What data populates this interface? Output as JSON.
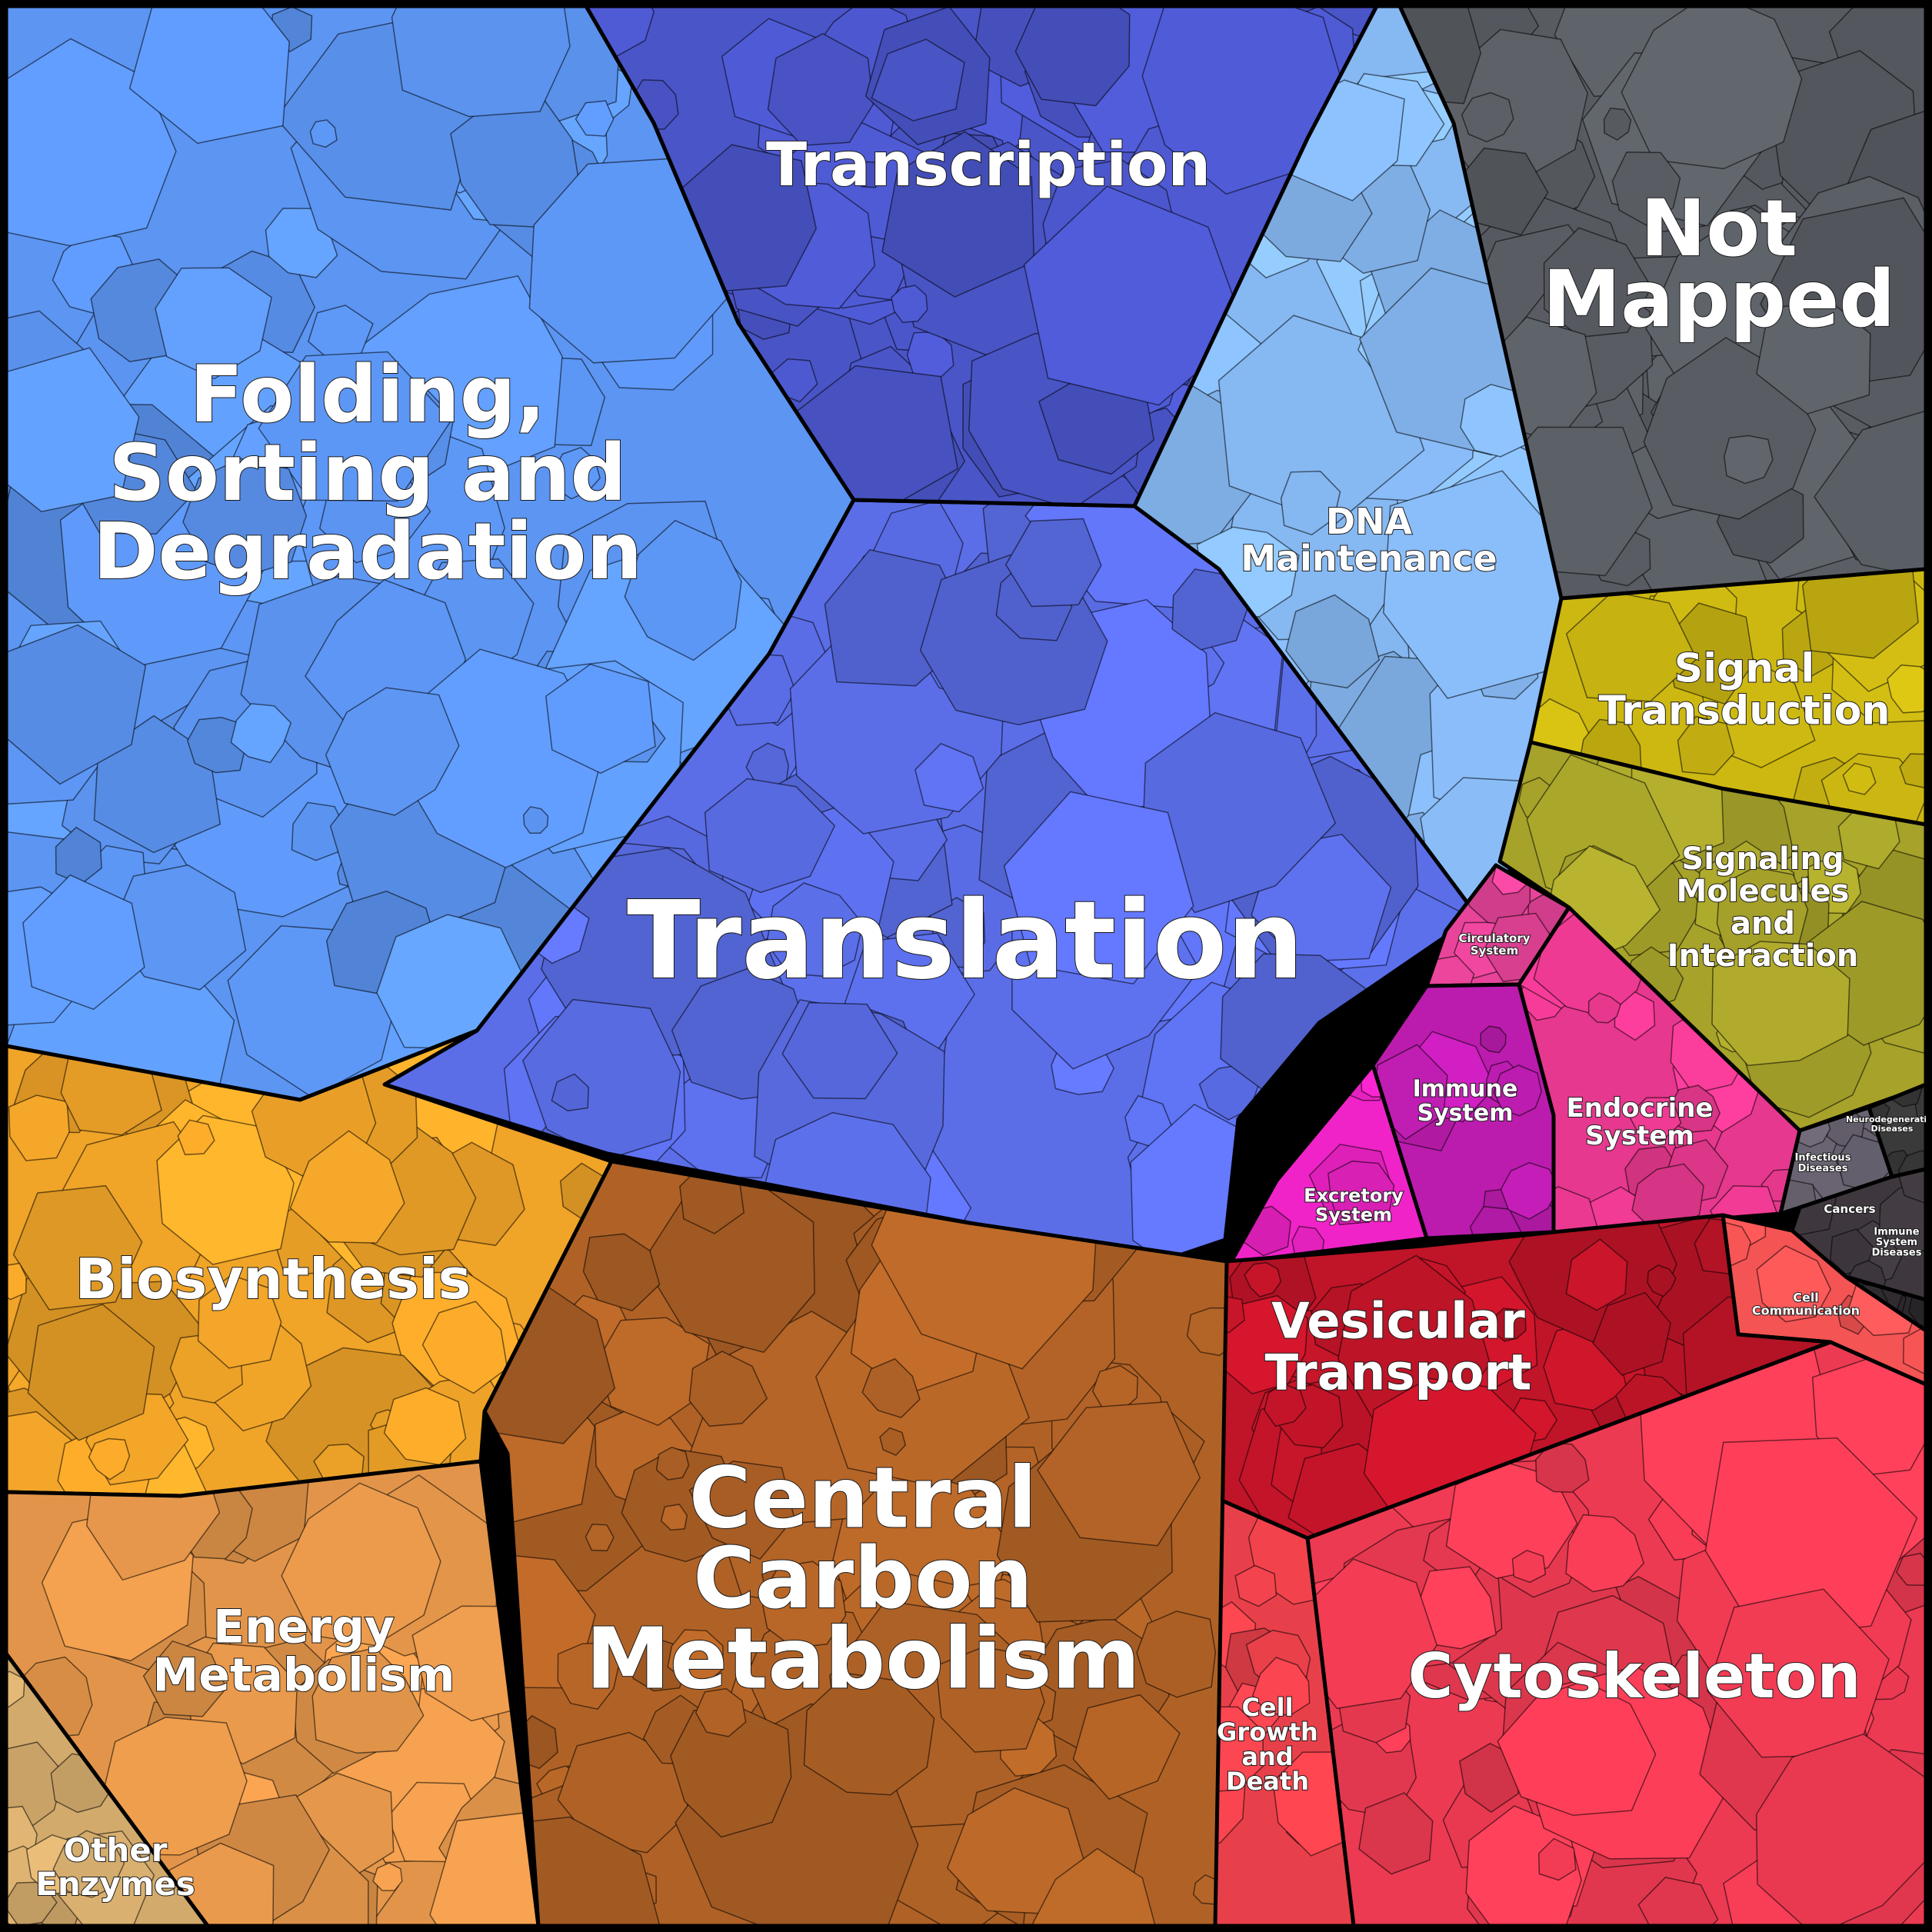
{
  "chart_data": {
    "type": "voronoi-treemap",
    "regions": [
      {
        "name": "Translation",
        "color": "#5b6ee8",
        "label_lines": [
          "Translation"
        ]
      },
      {
        "name": "Transcription",
        "color": "#4a55c8",
        "label_lines": [
          "Transcription"
        ]
      },
      {
        "name": "Folding, Sorting and Degradation",
        "color": "#5c95f2",
        "label_lines": [
          "Folding,",
          "Sorting and",
          "Degradation"
        ]
      },
      {
        "name": "DNA Maintenance",
        "color": "#86b8f2",
        "label_lines": [
          "DNA",
          "Maintenance"
        ]
      },
      {
        "name": "Not Mapped",
        "color": "#585c62",
        "label_lines": [
          "Not",
          "Mapped"
        ]
      },
      {
        "name": "Signal Transduction",
        "color": "#cdb812",
        "label_lines": [
          "Signal",
          "Transduction"
        ]
      },
      {
        "name": "Signaling Molecules and Interaction",
        "color": "#a6a22a",
        "label_lines": [
          "Signaling",
          "Molecules",
          "and",
          "Interaction"
        ]
      },
      {
        "name": "Circulatory System",
        "color": "#e8449a",
        "label_lines": [
          "Circulatory",
          "System"
        ]
      },
      {
        "name": "Immune System",
        "color": "#bb1cae",
        "label_lines": [
          "Immune",
          "System"
        ]
      },
      {
        "name": "Endocrine System",
        "color": "#e6388e",
        "label_lines": [
          "Endocrine",
          "System"
        ]
      },
      {
        "name": "Excretory System",
        "color": "#f023c8",
        "label_lines": [
          "Excretory",
          "System"
        ]
      },
      {
        "name": "Infectious Diseases",
        "color": "#6a6472",
        "label_lines": [
          "Infectious",
          "Diseases"
        ]
      },
      {
        "name": "Cancers",
        "color": "#3e383e",
        "label_lines": [
          "Cancers"
        ]
      },
      {
        "name": "Immune System Diseases",
        "color": "#2c282c",
        "label_lines": [
          "Immune",
          "System",
          "Diseases"
        ]
      },
      {
        "name": "Neurodegenerative Diseases",
        "color": "#3a3a3a",
        "label_lines": [
          "Neurodegenerative",
          "Diseases"
        ]
      },
      {
        "name": "Cell Communication",
        "color": "#f45454",
        "label_lines": [
          "Cell",
          "Communication"
        ]
      },
      {
        "name": "Vesicular Transport",
        "color": "#c01428",
        "label_lines": [
          "Vesicular",
          "Transport"
        ]
      },
      {
        "name": "Cytoskeleton",
        "color": "#ec3a52",
        "label_lines": [
          "Cytoskeleton"
        ]
      },
      {
        "name": "Cell Growth and Death",
        "color": "#e8404a",
        "label_lines": [
          "Cell",
          "Growth",
          "and",
          "Death"
        ]
      },
      {
        "name": "Central Carbon Metabolism",
        "color": "#b06226",
        "label_lines": [
          "Central",
          "Carbon",
          "Metabolism"
        ]
      },
      {
        "name": "Biosynthesis",
        "color": "#f0a428",
        "label_lines": [
          "Biosynthesis"
        ]
      },
      {
        "name": "Energy Metabolism",
        "color": "#e2954a",
        "label_lines": [
          "Energy",
          "Metabolism"
        ]
      },
      {
        "name": "Other Enzymes",
        "color": "#d2aa6c",
        "label_lines": [
          "Other",
          "Enzymes"
        ]
      }
    ]
  }
}
